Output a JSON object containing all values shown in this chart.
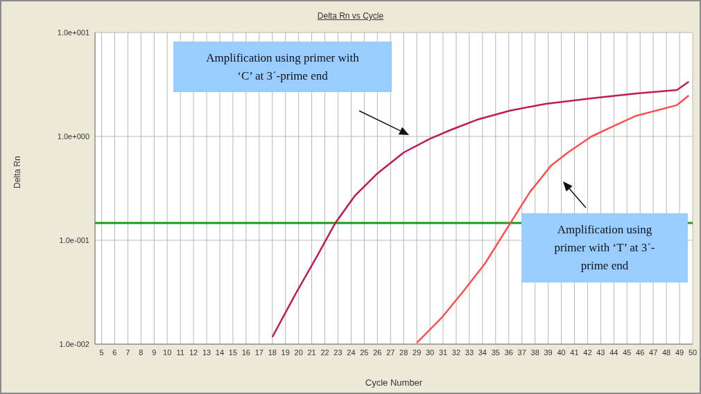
{
  "chart_data": {
    "type": "line",
    "title": "Delta Rn vs Cycle",
    "xlabel": "Cycle Number",
    "ylabel": "Delta Rn",
    "log": "y",
    "grid": true,
    "legend": false,
    "marker": "none",
    "line_style": "solid",
    "xlim": [
      4.5,
      50
    ],
    "xticks": [
      5,
      6,
      7,
      8,
      9,
      10,
      11,
      12,
      13,
      14,
      15,
      16,
      17,
      18,
      19,
      20,
      21,
      22,
      23,
      24,
      25,
      26,
      27,
      28,
      29,
      30,
      31,
      32,
      33,
      34,
      35,
      36,
      37,
      38,
      39,
      40,
      41,
      42,
      43,
      44,
      45,
      46,
      47,
      48,
      49,
      50
    ],
    "ylim": [
      0.01,
      10
    ],
    "yticks": [
      {
        "value": 0.01,
        "label": "1.0e-002"
      },
      {
        "value": 0.1,
        "label": "1.0e-001"
      },
      {
        "value": 1,
        "label": "1.0e+000"
      },
      {
        "value": 10,
        "label": "1.0e+001"
      }
    ],
    "series": [
      {
        "color": "#c0185a",
        "x": [
          18,
          19.8,
          21.4,
          22.8,
          24.3,
          26,
          28,
          30,
          31.7,
          33.6,
          36.1,
          38.8,
          42.3,
          45.7,
          48.8,
          49.7
        ],
        "values": [
          0.0117,
          0.031,
          0.07,
          0.147,
          0.27,
          0.44,
          0.7,
          0.95,
          1.17,
          1.45,
          1.77,
          2.06,
          2.33,
          2.59,
          2.8,
          3.36
        ]
      },
      {
        "color": "#ff4d4d",
        "x": [
          29,
          30.9,
          32.6,
          34.2,
          36.1,
          37.6,
          39.2,
          40.5,
          42.3,
          44,
          45.7,
          48.8,
          49.7
        ],
        "values": [
          0.0103,
          0.018,
          0.033,
          0.06,
          0.145,
          0.29,
          0.52,
          0.7,
          1,
          1.26,
          1.58,
          2,
          2.47
        ]
      }
    ],
    "ref_lines": [
      {
        "axis": "y",
        "value": 0.147,
        "color": "#1a9a1a",
        "line_style": "solid"
      }
    ],
    "annotations": [
      "Amplification using primer with ‘C’ at 3´-prime end",
      "Amplification using primer with ‘T’ at 3´-prime end"
    ]
  }
}
